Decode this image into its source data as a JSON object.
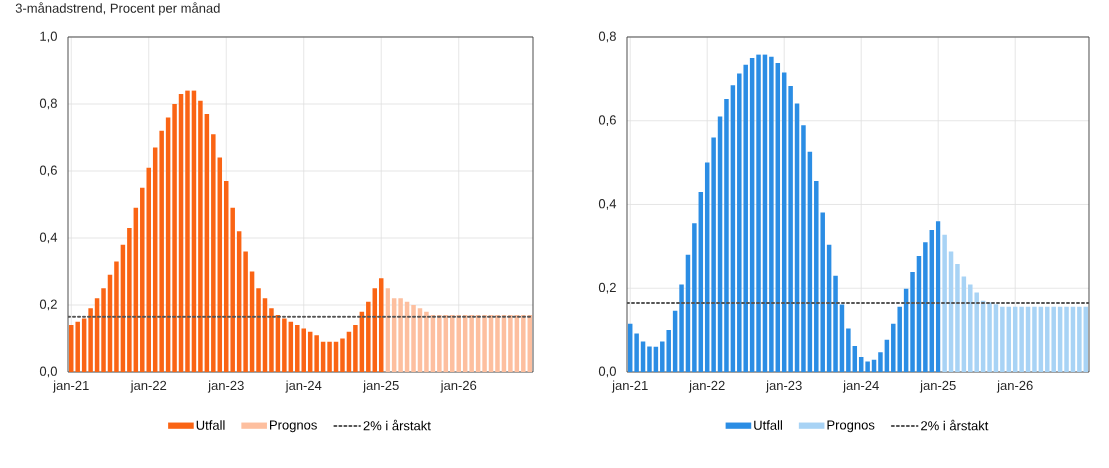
{
  "chart_data": [
    {
      "type": "bar",
      "title": "3-månadstrend, Procent per månad",
      "categories": [
        "jan-21",
        null,
        null,
        null,
        null,
        null,
        null,
        null,
        null,
        null,
        null,
        null,
        "jan-22",
        null,
        null,
        null,
        null,
        null,
        null,
        null,
        null,
        null,
        null,
        null,
        "jan-23",
        null,
        null,
        null,
        null,
        null,
        null,
        null,
        null,
        null,
        null,
        null,
        "jan-24",
        null,
        null,
        null,
        null,
        null,
        null,
        null,
        null,
        null,
        null,
        null,
        "jan-25",
        null,
        null,
        null,
        null,
        null,
        null,
        null,
        null,
        null,
        null,
        null,
        "jan-26",
        null,
        null,
        null,
        null,
        null,
        null,
        null,
        null,
        null,
        null,
        null
      ],
      "series": [
        {
          "name": "Utfall",
          "color": "#fa6414",
          "values": [
            0.14,
            0.15,
            0.16,
            0.19,
            0.22,
            0.25,
            0.29,
            0.33,
            0.38,
            0.43,
            0.49,
            0.55,
            0.61,
            0.67,
            0.72,
            0.76,
            0.8,
            0.83,
            0.84,
            0.84,
            0.81,
            0.77,
            0.71,
            0.64,
            0.57,
            0.49,
            0.42,
            0.36,
            0.3,
            0.25,
            0.22,
            0.19,
            0.17,
            0.16,
            0.15,
            0.14,
            0.13,
            0.12,
            0.11,
            0.09,
            0.09,
            0.09,
            0.1,
            0.12,
            0.14,
            0.18,
            0.21,
            0.25,
            0.28,
            null,
            null,
            null,
            null,
            null,
            null,
            null,
            null,
            null,
            null,
            null,
            null,
            null,
            null,
            null,
            null,
            null,
            null,
            null,
            null,
            null,
            null,
            null
          ]
        },
        {
          "name": "Prognos",
          "color": "#fdbf9f",
          "values": [
            null,
            null,
            null,
            null,
            null,
            null,
            null,
            null,
            null,
            null,
            null,
            null,
            null,
            null,
            null,
            null,
            null,
            null,
            null,
            null,
            null,
            null,
            null,
            null,
            null,
            null,
            null,
            null,
            null,
            null,
            null,
            null,
            null,
            null,
            null,
            null,
            null,
            null,
            null,
            null,
            null,
            null,
            null,
            null,
            null,
            null,
            null,
            null,
            null,
            0.25,
            0.22,
            0.22,
            0.21,
            0.2,
            0.19,
            0.18,
            0.17,
            0.17,
            0.17,
            0.17,
            0.17,
            0.17,
            0.17,
            0.17,
            0.17,
            0.17,
            0.17,
            0.17,
            0.17,
            0.17,
            0.17,
            0.17
          ]
        }
      ],
      "ylim": [
        0,
        1.0
      ],
      "yticks": [
        {
          "value": 0,
          "label": "0,0"
        },
        {
          "value": 0.2,
          "label": "0,2"
        },
        {
          "value": 0.4,
          "label": "0,4"
        },
        {
          "value": 0.6,
          "label": "0,6"
        },
        {
          "value": 0.8,
          "label": "0,8"
        },
        {
          "value": 1.0,
          "label": "1,0"
        }
      ],
      "ref_lines": [
        {
          "axis": "y",
          "value": 0.165,
          "label": "2% i årstakt",
          "color": "#555555",
          "line_style": "dotted"
        }
      ],
      "grid": true,
      "legend": "bottom"
    },
    {
      "type": "bar",
      "categories": [
        "jan-21",
        null,
        null,
        null,
        null,
        null,
        null,
        null,
        null,
        null,
        null,
        null,
        "jan-22",
        null,
        null,
        null,
        null,
        null,
        null,
        null,
        null,
        null,
        null,
        null,
        "jan-23",
        null,
        null,
        null,
        null,
        null,
        null,
        null,
        null,
        null,
        null,
        null,
        "jan-24",
        null,
        null,
        null,
        null,
        null,
        null,
        null,
        null,
        null,
        null,
        null,
        "jan-25",
        null,
        null,
        null,
        null,
        null,
        null,
        null,
        null,
        null,
        null,
        null,
        "jan-26",
        null,
        null,
        null,
        null,
        null,
        null,
        null,
        null,
        null,
        null,
        null
      ],
      "series": [
        {
          "name": "Utfall",
          "color": "#2b8de4",
          "values": [
            0.115,
            0.092,
            0.073,
            0.061,
            0.06,
            0.073,
            0.1,
            0.146,
            0.209,
            0.28,
            0.355,
            0.43,
            0.5,
            0.56,
            0.61,
            0.652,
            0.685,
            0.713,
            0.734,
            0.75,
            0.758,
            0.758,
            0.753,
            0.738,
            0.715,
            0.683,
            0.641,
            0.589,
            0.526,
            0.456,
            0.381,
            0.304,
            0.23,
            0.161,
            0.104,
            0.062,
            0.036,
            0.025,
            0.029,
            0.047,
            0.077,
            0.115,
            0.156,
            0.199,
            0.239,
            0.277,
            0.31,
            0.339,
            0.36,
            null,
            null,
            null,
            null,
            null,
            null,
            null,
            null,
            null,
            null,
            null,
            null,
            null,
            null,
            null,
            null,
            null,
            null,
            null,
            null,
            null,
            null,
            null
          ]
        },
        {
          "name": "Prognos",
          "color": "#a8d3f5",
          "values": [
            null,
            null,
            null,
            null,
            null,
            null,
            null,
            null,
            null,
            null,
            null,
            null,
            null,
            null,
            null,
            null,
            null,
            null,
            null,
            null,
            null,
            null,
            null,
            null,
            null,
            null,
            null,
            null,
            null,
            null,
            null,
            null,
            null,
            null,
            null,
            null,
            null,
            null,
            null,
            null,
            null,
            null,
            null,
            null,
            null,
            null,
            null,
            null,
            null,
            0.328,
            0.288,
            0.258,
            0.228,
            0.209,
            0.19,
            0.17,
            0.166,
            0.162,
            0.156,
            0.156,
            0.156,
            0.156,
            0.156,
            0.156,
            0.156,
            0.156,
            0.156,
            0.156,
            0.156,
            0.156,
            0.156,
            0.156
          ]
        }
      ],
      "ylim": [
        0,
        0.8
      ],
      "yticks": [
        {
          "value": 0,
          "label": "0,0"
        },
        {
          "value": 0.2,
          "label": "0,2"
        },
        {
          "value": 0.4,
          "label": "0,4"
        },
        {
          "value": 0.6,
          "label": "0,6"
        },
        {
          "value": 0.8,
          "label": "0,8"
        }
      ],
      "ref_lines": [
        {
          "axis": "y",
          "value": 0.165,
          "label": "2% i årstakt",
          "color": "#555555",
          "line_style": "dotted"
        }
      ],
      "grid": true,
      "legend": "bottom"
    }
  ]
}
